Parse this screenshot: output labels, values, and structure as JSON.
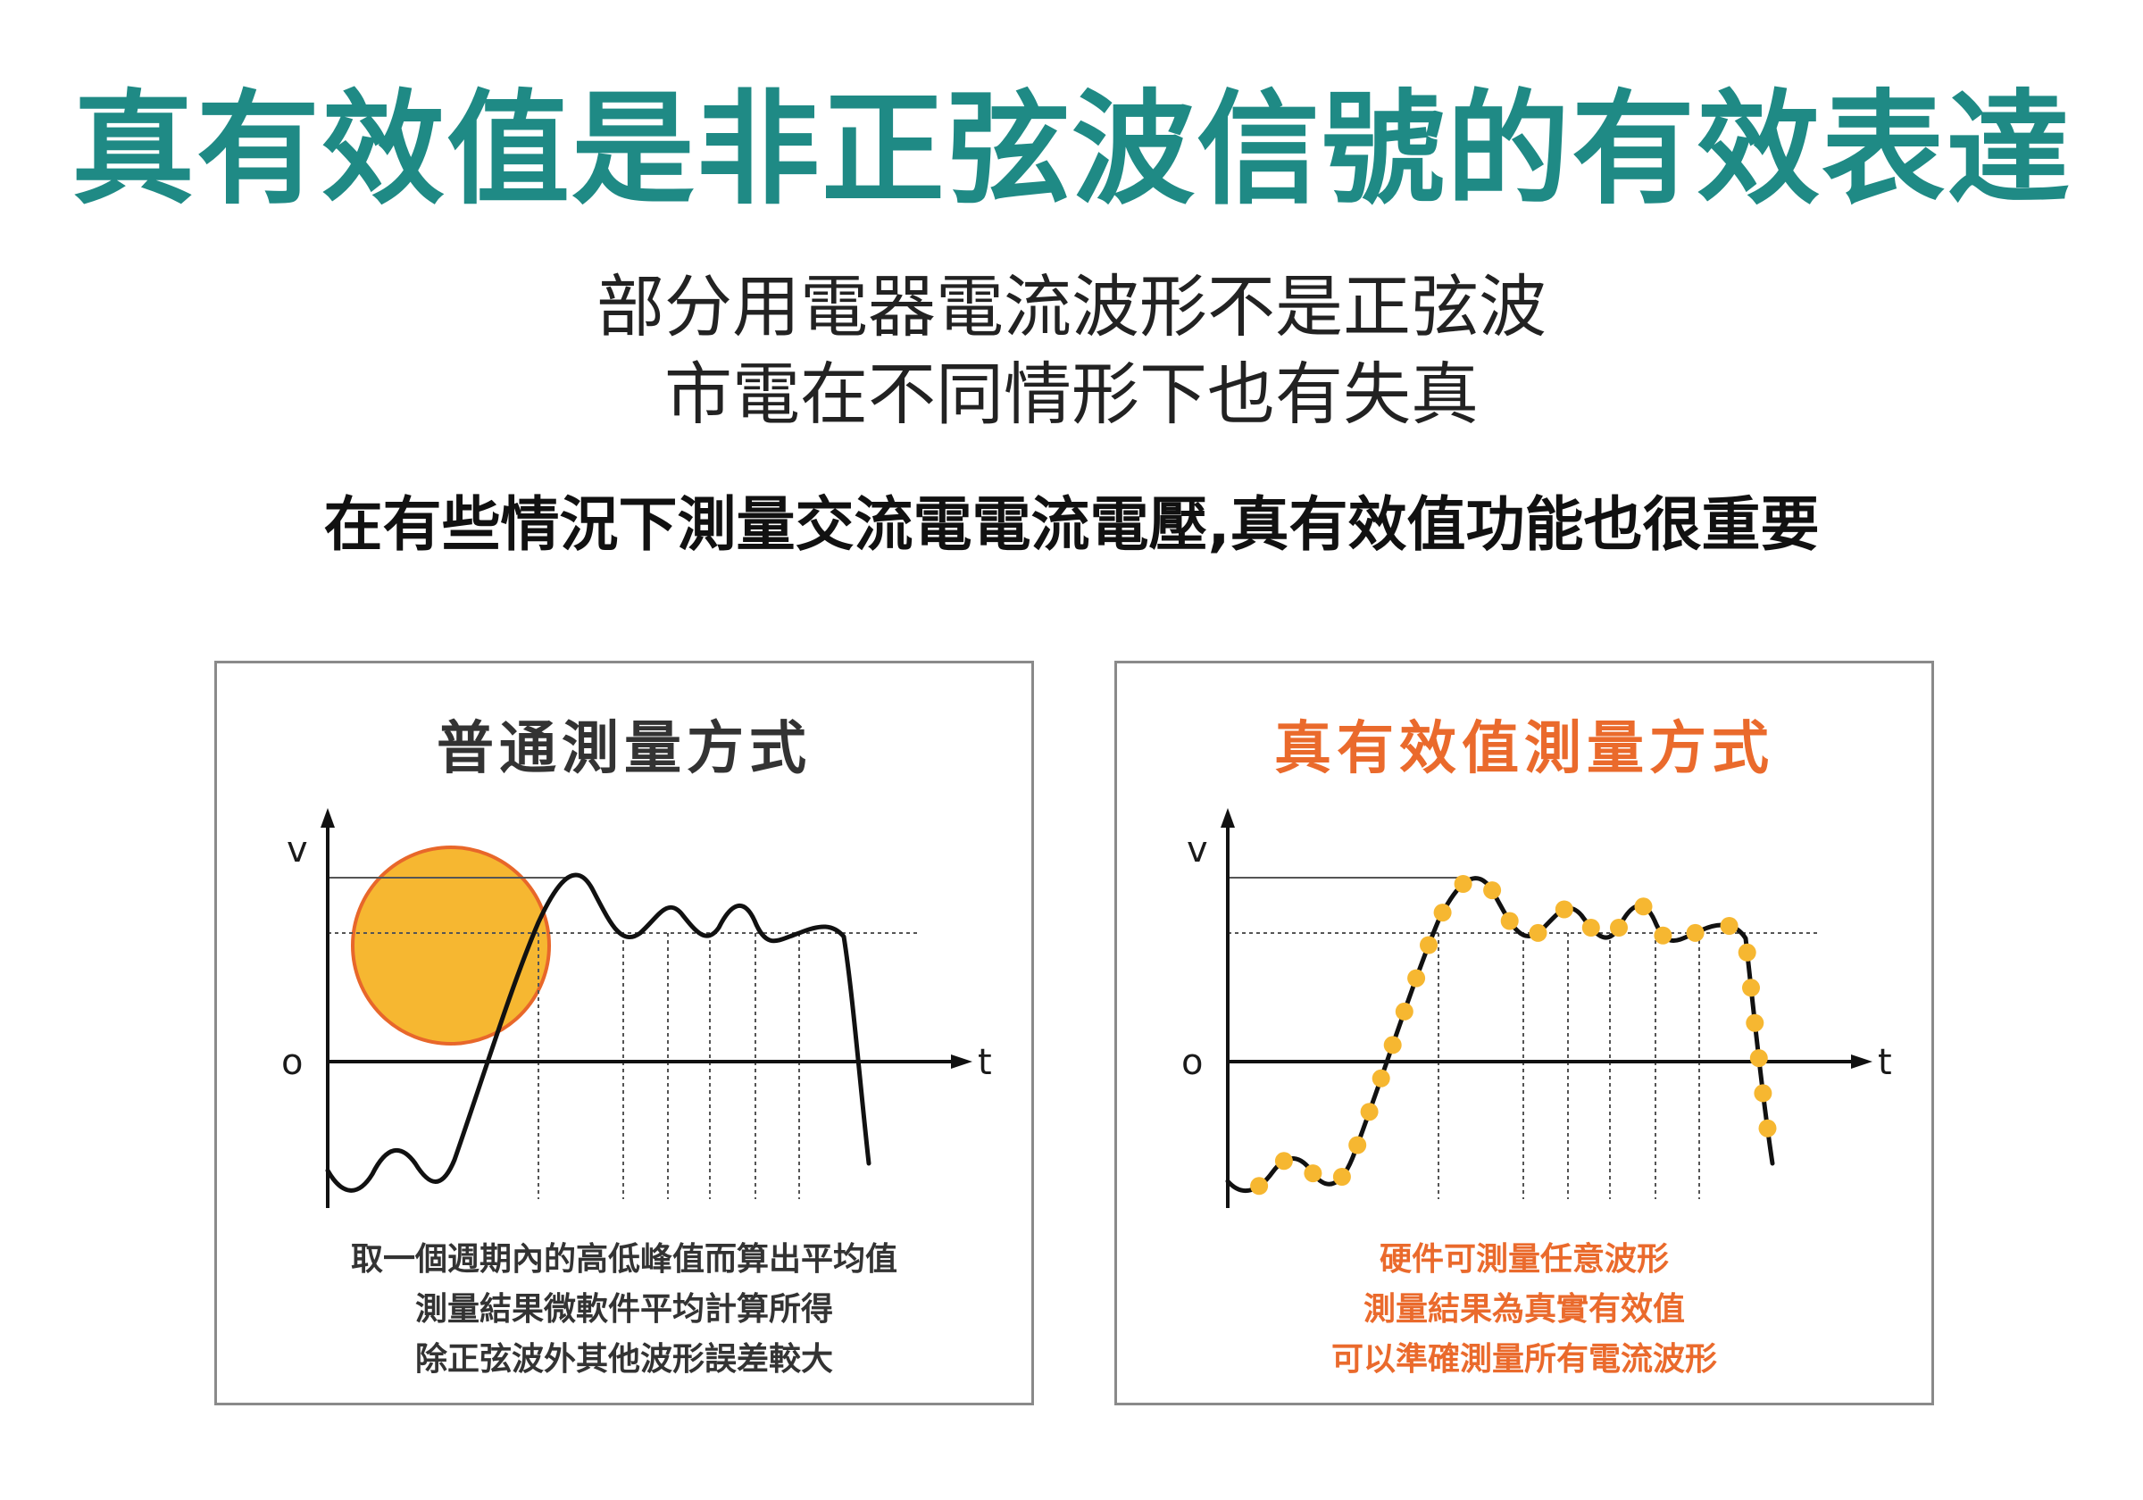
{
  "title": "真有效值是非正弦波信號的有效表達",
  "subtitle_lines": [
    "部分用電器電流波形不是正弦波",
    "市電在不同情形下也有失真"
  ],
  "statement": "在有些情況下測量交流電電流電壓,真有效值功能也很重要",
  "colors": {
    "title": "#1f8a85",
    "accent_orange": "#ea6a2c",
    "circle_fill": "#f6b731",
    "circle_stroke": "#e8672a",
    "sample_dot": "#f6b731"
  },
  "panels": [
    {
      "id": "normal",
      "title": "普通測量方式",
      "axis": {
        "y_label": "v",
        "x_label": "t",
        "origin_label": "o"
      },
      "highlight": "circle",
      "captions": [
        "取一個週期內的高低峰值而算出平均值",
        "測量結果微軟件平均計算所得",
        "除正弦波外其他波形誤差較大"
      ]
    },
    {
      "id": "true-rms",
      "title": "真有效值測量方式",
      "axis": {
        "y_label": "v",
        "x_label": "t",
        "origin_label": "o"
      },
      "highlight": "sample-dots",
      "captions": [
        "硬件可測量任意波形",
        "測量結果為真實有效值",
        "可以準確測量所有電流波形"
      ]
    }
  ]
}
